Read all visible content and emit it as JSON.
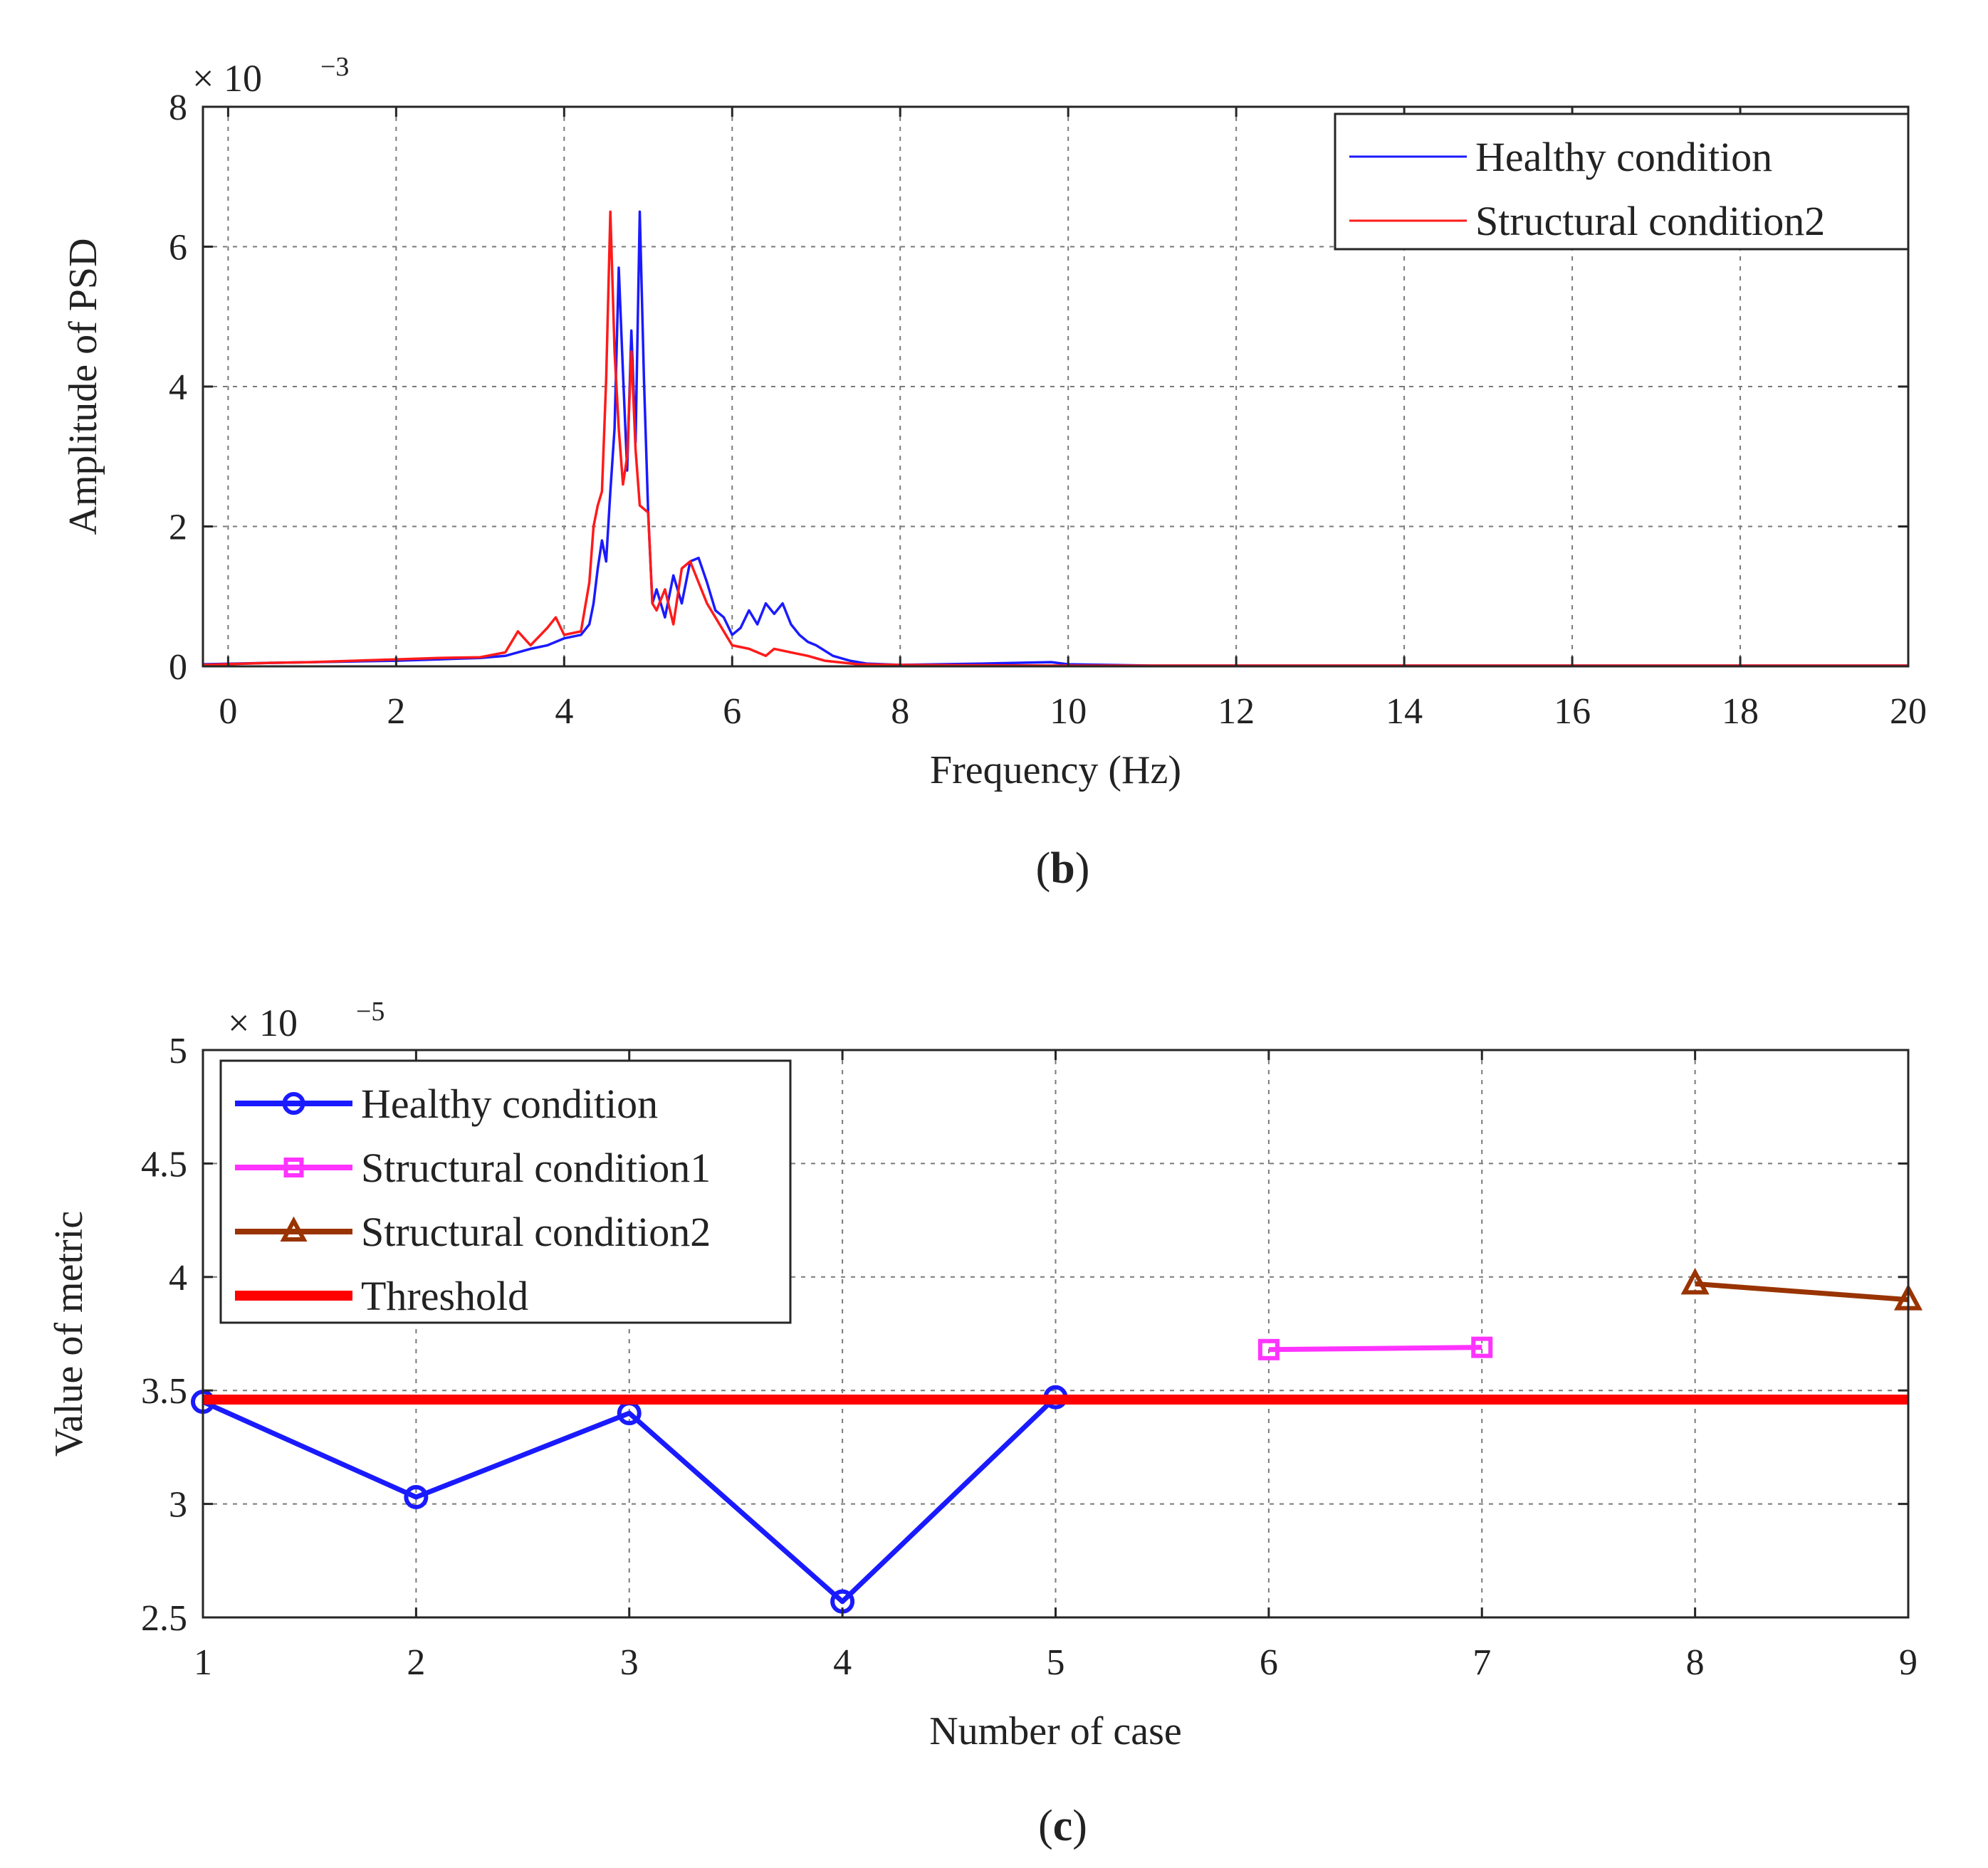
{
  "chart_data": [
    {
      "type": "line",
      "panel": "b",
      "caption_letter": "b",
      "xlabel": "Frequency (Hz)",
      "ylabel": "Amplitude of PSD",
      "y_exponent_prefix": "× 10",
      "y_exponent_power": "−3",
      "xlim": [
        -0.3,
        20
      ],
      "ylim": [
        0,
        8
      ],
      "xticks": [
        0,
        2,
        4,
        6,
        8,
        10,
        12,
        14,
        16,
        18,
        20
      ],
      "xtick_labels": [
        "0",
        "2",
        "4",
        "6",
        "8",
        "10",
        "12",
        "14",
        "16",
        "18",
        "20"
      ],
      "yticks": [
        0,
        2,
        4,
        6,
        8
      ],
      "ytick_labels": [
        "0",
        "2",
        "4",
        "6",
        "8"
      ],
      "grid": true,
      "legend_position": "top-right",
      "series": [
        {
          "name": "Healthy condition",
          "color": "#1a1aff",
          "points": [
            [
              -0.3,
              0.03
            ],
            [
              0.5,
              0.05
            ],
            [
              1.0,
              0.06
            ],
            [
              1.5,
              0.07
            ],
            [
              2.0,
              0.08
            ],
            [
              2.5,
              0.1
            ],
            [
              3.0,
              0.12
            ],
            [
              3.3,
              0.15
            ],
            [
              3.6,
              0.25
            ],
            [
              3.8,
              0.3
            ],
            [
              4.0,
              0.4
            ],
            [
              4.2,
              0.45
            ],
            [
              4.3,
              0.6
            ],
            [
              4.35,
              0.9
            ],
            [
              4.4,
              1.4
            ],
            [
              4.45,
              1.8
            ],
            [
              4.5,
              1.5
            ],
            [
              4.55,
              2.5
            ],
            [
              4.6,
              3.4
            ],
            [
              4.65,
              5.7
            ],
            [
              4.7,
              4.2
            ],
            [
              4.75,
              2.8
            ],
            [
              4.8,
              4.8
            ],
            [
              4.85,
              3.2
            ],
            [
              4.9,
              6.5
            ],
            [
              4.95,
              4.1
            ],
            [
              5.0,
              2.2
            ],
            [
              5.05,
              0.9
            ],
            [
              5.1,
              1.1
            ],
            [
              5.2,
              0.7
            ],
            [
              5.3,
              1.3
            ],
            [
              5.4,
              0.9
            ],
            [
              5.5,
              1.5
            ],
            [
              5.6,
              1.55
            ],
            [
              5.7,
              1.2
            ],
            [
              5.8,
              0.8
            ],
            [
              5.9,
              0.7
            ],
            [
              6.0,
              0.45
            ],
            [
              6.1,
              0.55
            ],
            [
              6.2,
              0.8
            ],
            [
              6.3,
              0.6
            ],
            [
              6.4,
              0.9
            ],
            [
              6.5,
              0.75
            ],
            [
              6.6,
              0.9
            ],
            [
              6.7,
              0.6
            ],
            [
              6.8,
              0.45
            ],
            [
              6.9,
              0.35
            ],
            [
              7.0,
              0.3
            ],
            [
              7.2,
              0.15
            ],
            [
              7.4,
              0.08
            ],
            [
              7.6,
              0.04
            ],
            [
              8.0,
              0.02
            ],
            [
              9.0,
              0.04
            ],
            [
              9.8,
              0.06
            ],
            [
              10.0,
              0.03
            ],
            [
              11.0,
              0.01
            ],
            [
              20.0,
              0.01
            ]
          ]
        },
        {
          "name": "Structural condition2",
          "color": "#ff1a1a",
          "points": [
            [
              -0.3,
              0.02
            ],
            [
              0.5,
              0.05
            ],
            [
              1.0,
              0.06
            ],
            [
              1.5,
              0.08
            ],
            [
              2.0,
              0.1
            ],
            [
              2.5,
              0.12
            ],
            [
              3.0,
              0.13
            ],
            [
              3.3,
              0.2
            ],
            [
              3.45,
              0.5
            ],
            [
              3.6,
              0.3
            ],
            [
              3.8,
              0.55
            ],
            [
              3.9,
              0.7
            ],
            [
              4.0,
              0.45
            ],
            [
              4.2,
              0.5
            ],
            [
              4.3,
              1.2
            ],
            [
              4.35,
              2.0
            ],
            [
              4.4,
              2.3
            ],
            [
              4.45,
              2.5
            ],
            [
              4.5,
              4.1
            ],
            [
              4.55,
              6.5
            ],
            [
              4.6,
              4.5
            ],
            [
              4.65,
              3.4
            ],
            [
              4.7,
              2.6
            ],
            [
              4.75,
              3.0
            ],
            [
              4.8,
              4.5
            ],
            [
              4.85,
              3.1
            ],
            [
              4.9,
              2.3
            ],
            [
              5.0,
              2.2
            ],
            [
              5.05,
              0.9
            ],
            [
              5.1,
              0.8
            ],
            [
              5.2,
              1.1
            ],
            [
              5.3,
              0.6
            ],
            [
              5.4,
              1.4
            ],
            [
              5.5,
              1.5
            ],
            [
              5.6,
              1.2
            ],
            [
              5.7,
              0.9
            ],
            [
              5.8,
              0.7
            ],
            [
              5.9,
              0.5
            ],
            [
              6.0,
              0.3
            ],
            [
              6.2,
              0.25
            ],
            [
              6.4,
              0.15
            ],
            [
              6.5,
              0.25
            ],
            [
              6.7,
              0.2
            ],
            [
              6.9,
              0.15
            ],
            [
              7.1,
              0.08
            ],
            [
              7.5,
              0.03
            ],
            [
              8.0,
              0.02
            ],
            [
              10.0,
              0.01
            ],
            [
              20.0,
              0.01
            ]
          ]
        }
      ]
    },
    {
      "type": "line",
      "panel": "c",
      "caption_letter": "c",
      "xlabel": "Number of case",
      "ylabel": "Value of metric",
      "y_exponent_prefix": "× 10",
      "y_exponent_power": "−5",
      "xlim": [
        1,
        9
      ],
      "ylim": [
        2.5,
        5
      ],
      "xticks": [
        1,
        2,
        3,
        4,
        5,
        6,
        7,
        8,
        9
      ],
      "xtick_labels": [
        "1",
        "2",
        "3",
        "4",
        "5",
        "6",
        "7",
        "8",
        "9"
      ],
      "yticks": [
        2.5,
        3,
        3.5,
        4,
        4.5,
        5
      ],
      "ytick_labels": [
        "2.5",
        "3",
        "3.5",
        "4",
        "4.5",
        "5"
      ],
      "grid": true,
      "legend_position": "top-left",
      "series": [
        {
          "name": "Healthy condition",
          "color": "#1a1aff",
          "marker": "circle",
          "x": [
            1,
            2,
            3,
            4,
            5
          ],
          "values": [
            3.45,
            3.03,
            3.4,
            2.57,
            3.47
          ]
        },
        {
          "name": "Structural condition1",
          "color": "#ff33ff",
          "marker": "square",
          "x": [
            6,
            7
          ],
          "values": [
            3.68,
            3.69
          ]
        },
        {
          "name": "Structural condition2",
          "color": "#993300",
          "marker": "triangle",
          "x": [
            8,
            9
          ],
          "values": [
            3.97,
            3.9
          ]
        },
        {
          "name": "Threshold",
          "color": "#ff0000",
          "marker": "none",
          "x": [
            1,
            9
          ],
          "values": [
            3.46,
            3.46
          ]
        }
      ]
    }
  ]
}
